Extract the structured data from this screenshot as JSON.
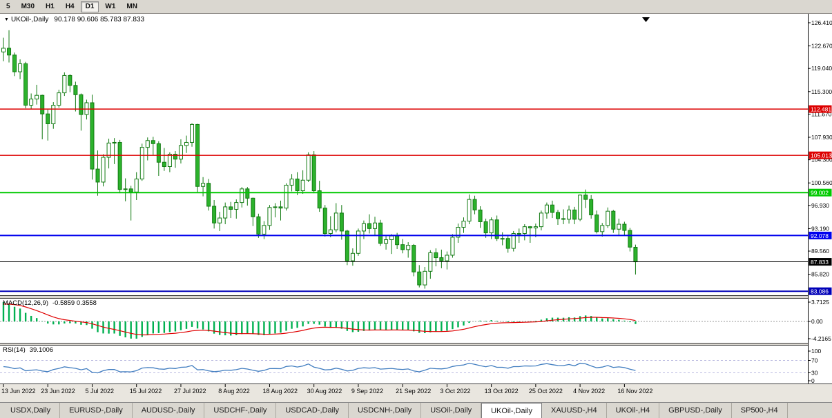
{
  "toolbar": {
    "timeframes": [
      "5",
      "M30",
      "H1",
      "H4",
      "D1",
      "W1",
      "MN"
    ],
    "active": "D1"
  },
  "chart": {
    "dropdown_icon": "▼",
    "title": "UKOil-,Daily",
    "ohlc_text": "90.178 90.606 85.783 87.833"
  },
  "macd": {
    "name": "MACD(12,26,9)",
    "values_text": "-0.5859 0.3558"
  },
  "rsi": {
    "name": "RSI(14)",
    "value_text": "39.1006"
  },
  "chart_data": {
    "type": "candlestick",
    "symbol": "UKOil-,Daily",
    "timeframe": "Daily",
    "x_tick_labels": [
      "13 Jun 2022",
      "23 Jun 2022",
      "5 Jul 2022",
      "15 Jul 2022",
      "27 Jul 2022",
      "8 Aug 2022",
      "18 Aug 2022",
      "30 Aug 2022",
      "9 Sep 2022",
      "21 Sep 2022",
      "3 Oct 2022",
      "13 Oct 2022",
      "25 Oct 2022",
      "4 Nov 2022",
      "16 Nov 2022"
    ],
    "x_tick_indices": [
      0,
      8,
      16,
      24,
      32,
      40,
      48,
      56,
      64,
      72,
      80,
      88,
      96,
      104,
      112
    ],
    "price_scale_labels": [
      "126.410",
      "122.670",
      "119.040",
      "115.300",
      "111.670",
      "107.930",
      "104.300",
      "100.560",
      "96.930",
      "93.190",
      "89.560",
      "85.820"
    ],
    "price_range": [
      82.44,
      127.41
    ],
    "hlines": [
      {
        "price": 112.481,
        "label": "112.481",
        "color": "#dd0000",
        "width": 1.4
      },
      {
        "price": 105.013,
        "label": "105.013",
        "color": "#dd0000",
        "width": 1.4
      },
      {
        "price": 99.002,
        "label": "99.002",
        "color": "#00ca00",
        "width": 2
      },
      {
        "price": 92.078,
        "label": "92.078",
        "color": "#0000ee",
        "width": 2
      },
      {
        "price": 87.833,
        "label": "87.833",
        "color": "#000000",
        "width": 1
      },
      {
        "price": 83.086,
        "label": "83.086",
        "color": "#0000b8",
        "width": 2
      }
    ],
    "ohlc": [
      [
        121.7,
        124.0,
        120.2,
        122.3
      ],
      [
        122.3,
        125.2,
        120.0,
        121.2
      ],
      [
        121.2,
        121.6,
        117.8,
        118.5
      ],
      [
        118.5,
        120.5,
        117.3,
        119.8
      ],
      [
        119.8,
        120.1,
        112.6,
        113.1
      ],
      [
        113.1,
        115.0,
        112.5,
        114.1
      ],
      [
        114.1,
        116.4,
        113.2,
        114.7
      ],
      [
        114.7,
        114.8,
        107.6,
        111.7
      ],
      [
        111.7,
        112.4,
        107.4,
        110.1
      ],
      [
        110.1,
        113.6,
        109.3,
        113.1
      ],
      [
        113.1,
        115.6,
        112.7,
        115.1
      ],
      [
        115.1,
        118.4,
        114.6,
        117.9
      ],
      [
        117.9,
        118.1,
        115.2,
        116.3
      ],
      [
        116.3,
        116.9,
        112.1,
        114.8
      ],
      [
        114.8,
        115.0,
        109.0,
        111.6
      ],
      [
        111.6,
        114.0,
        110.8,
        113.5
      ],
      [
        113.5,
        114.8,
        101.1,
        102.8
      ],
      [
        102.8,
        105.8,
        98.5,
        100.7
      ],
      [
        100.7,
        105.2,
        100.0,
        104.7
      ],
      [
        104.7,
        107.7,
        102.9,
        107.0
      ],
      [
        107.0,
        107.8,
        103.6,
        107.1
      ],
      [
        107.1,
        107.5,
        98.9,
        99.5
      ],
      [
        99.5,
        101.3,
        97.6,
        99.6
      ],
      [
        99.6,
        100.1,
        94.5,
        99.1
      ],
      [
        99.1,
        102.3,
        97.8,
        101.2
      ],
      [
        101.2,
        106.9,
        100.9,
        106.3
      ],
      [
        106.3,
        107.9,
        104.2,
        107.4
      ],
      [
        107.4,
        108.0,
        105.1,
        106.9
      ],
      [
        106.9,
        107.3,
        101.7,
        103.9
      ],
      [
        103.9,
        106.2,
        102.5,
        103.2
      ],
      [
        103.2,
        105.5,
        102.3,
        105.2
      ],
      [
        105.2,
        105.7,
        103.0,
        104.4
      ],
      [
        104.4,
        107.6,
        103.7,
        106.6
      ],
      [
        106.6,
        108.2,
        105.4,
        107.1
      ],
      [
        107.1,
        110.2,
        106.4,
        110.0
      ],
      [
        110.0,
        110.1,
        99.1,
        100.0
      ],
      [
        100.0,
        101.5,
        98.4,
        100.5
      ],
      [
        100.5,
        101.2,
        96.1,
        96.8
      ],
      [
        96.8,
        97.8,
        93.2,
        94.1
      ],
      [
        94.1,
        95.9,
        92.8,
        94.9
      ],
      [
        94.9,
        97.4,
        93.9,
        96.7
      ],
      [
        96.7,
        97.5,
        94.9,
        96.3
      ],
      [
        96.3,
        97.9,
        94.8,
        97.4
      ],
      [
        97.4,
        99.9,
        96.6,
        99.6
      ],
      [
        99.6,
        99.9,
        96.9,
        98.1
      ],
      [
        98.1,
        98.2,
        93.6,
        95.1
      ],
      [
        95.1,
        95.6,
        91.7,
        92.3
      ],
      [
        92.3,
        94.4,
        91.5,
        93.7
      ],
      [
        93.7,
        97.0,
        93.0,
        96.6
      ],
      [
        96.6,
        97.3,
        95.0,
        96.7
      ],
      [
        96.7,
        97.7,
        94.5,
        96.5
      ],
      [
        96.5,
        100.5,
        96.1,
        100.2
      ],
      [
        100.2,
        102.0,
        99.2,
        101.2
      ],
      [
        101.2,
        102.3,
        98.6,
        99.3
      ],
      [
        99.3,
        102.6,
        98.8,
        101.0
      ],
      [
        101.0,
        105.5,
        100.7,
        105.1
      ],
      [
        105.1,
        105.7,
        98.9,
        99.3
      ],
      [
        99.3,
        100.9,
        95.9,
        96.5
      ],
      [
        96.5,
        97.0,
        91.9,
        92.4
      ],
      [
        92.4,
        95.2,
        91.8,
        93.0
      ],
      [
        93.0,
        97.3,
        92.6,
        95.7
      ],
      [
        95.7,
        97.0,
        91.4,
        92.8
      ],
      [
        92.8,
        93.0,
        87.3,
        88.0
      ],
      [
        88.0,
        90.0,
        87.2,
        89.2
      ],
      [
        89.2,
        93.2,
        88.8,
        92.8
      ],
      [
        92.8,
        94.5,
        91.5,
        94.0
      ],
      [
        94.0,
        95.5,
        92.4,
        93.2
      ],
      [
        93.2,
        95.1,
        92.0,
        94.1
      ],
      [
        94.1,
        94.6,
        90.4,
        90.8
      ],
      [
        90.8,
        92.0,
        89.8,
        91.4
      ],
      [
        91.4,
        92.3,
        89.1,
        92.0
      ],
      [
        92.0,
        92.5,
        89.9,
        90.6
      ],
      [
        90.6,
        91.5,
        89.2,
        89.8
      ],
      [
        89.8,
        91.0,
        88.5,
        90.5
      ],
      [
        90.5,
        90.7,
        85.5,
        86.2
      ],
      [
        86.2,
        87.3,
        83.7,
        84.1
      ],
      [
        84.1,
        87.0,
        83.5,
        86.3
      ],
      [
        86.3,
        89.7,
        85.1,
        89.3
      ],
      [
        89.3,
        90.0,
        87.1,
        88.5
      ],
      [
        88.5,
        89.8,
        86.8,
        88.0
      ],
      [
        88.0,
        89.5,
        86.6,
        88.9
      ],
      [
        88.9,
        92.3,
        88.5,
        91.8
      ],
      [
        91.8,
        94.0,
        90.9,
        93.4
      ],
      [
        93.4,
        95.0,
        92.5,
        94.4
      ],
      [
        94.4,
        98.7,
        93.9,
        97.9
      ],
      [
        97.9,
        98.5,
        95.5,
        96.2
      ],
      [
        96.2,
        96.8,
        93.3,
        94.3
      ],
      [
        94.3,
        94.8,
        91.7,
        92.5
      ],
      [
        92.5,
        95.0,
        91.5,
        94.6
      ],
      [
        94.6,
        95.3,
        91.2,
        91.6
      ],
      [
        91.6,
        92.6,
        90.5,
        91.6
      ],
      [
        91.6,
        92.2,
        89.3,
        90.0
      ],
      [
        90.0,
        92.8,
        89.5,
        92.4
      ],
      [
        92.4,
        93.2,
        90.9,
        92.4
      ],
      [
        92.4,
        93.9,
        91.3,
        93.5
      ],
      [
        93.5,
        93.6,
        90.9,
        93.3
      ],
      [
        93.3,
        94.0,
        91.8,
        93.5
      ],
      [
        93.5,
        96.1,
        92.9,
        95.7
      ],
      [
        95.7,
        97.4,
        94.8,
        97.0
      ],
      [
        97.0,
        97.7,
        94.9,
        95.8
      ],
      [
        95.8,
        96.2,
        93.8,
        94.8
      ],
      [
        94.8,
        96.3,
        93.9,
        94.7
      ],
      [
        94.7,
        96.9,
        94.0,
        96.2
      ],
      [
        96.2,
        96.7,
        93.9,
        94.7
      ],
      [
        94.7,
        98.7,
        94.4,
        98.6
      ],
      [
        98.6,
        99.5,
        96.5,
        97.9
      ],
      [
        97.9,
        98.6,
        94.8,
        95.4
      ],
      [
        95.4,
        96.1,
        92.4,
        92.7
      ],
      [
        92.7,
        94.1,
        91.9,
        93.7
      ],
      [
        93.7,
        96.6,
        93.3,
        96.0
      ],
      [
        96.0,
        96.2,
        92.5,
        93.1
      ],
      [
        93.1,
        94.8,
        92.0,
        93.9
      ],
      [
        93.9,
        94.3,
        92.1,
        92.9
      ],
      [
        92.9,
        93.3,
        89.5,
        90.2
      ],
      [
        90.178,
        90.606,
        85.783,
        87.833
      ]
    ],
    "indicators": {
      "macd": {
        "params": [
          12,
          26,
          9
        ],
        "display_values": [
          -0.5859,
          0.3558
        ],
        "scale_labels": [
          "3.7125",
          "0.00",
          "-4.2165"
        ],
        "histogram_color": "#00b050",
        "signal_color": "#e00000"
      },
      "rsi": {
        "period": 14,
        "display_value": 39.1006,
        "scale_labels": [
          "100",
          "70",
          "30",
          "0"
        ],
        "levels": [
          70,
          30
        ],
        "line_color": "#3f7cbf"
      }
    },
    "candle_up_color": "#ffffff",
    "candle_down_color": "#2cb22c",
    "candle_outline_color": "#117a11"
  },
  "tabs": {
    "items": [
      {
        "label": "USDX,Daily"
      },
      {
        "label": "EURUSD-,Daily"
      },
      {
        "label": "AUDUSD-,Daily"
      },
      {
        "label": "USDCHF-,Daily"
      },
      {
        "label": "USDCAD-,Daily"
      },
      {
        "label": "USDCNH-,Daily"
      },
      {
        "label": "USOil-,Daily"
      },
      {
        "label": "UKOil-,Daily",
        "active": true
      },
      {
        "label": "XAUUSD-,H4"
      },
      {
        "label": "UKOil-,H4"
      },
      {
        "label": "GBPUSD-,Daily"
      },
      {
        "label": "SP500-,H4"
      }
    ]
  }
}
